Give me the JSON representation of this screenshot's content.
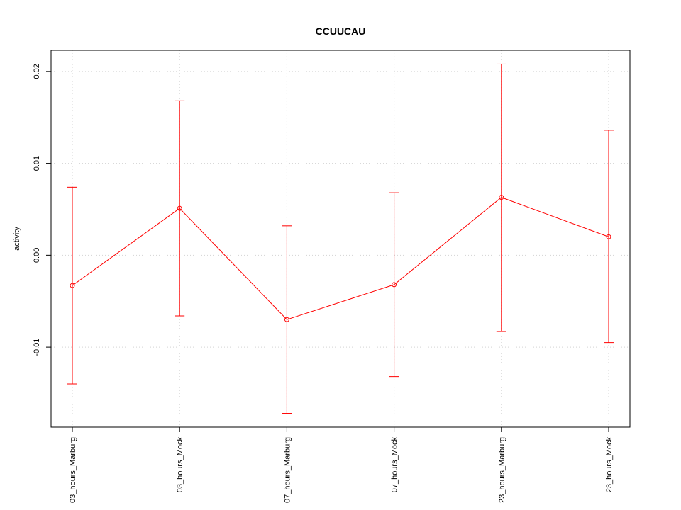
{
  "chart_data": {
    "type": "line",
    "title": "CCUUCAU",
    "xlabel": "",
    "ylabel": "activity",
    "categories": [
      "03_hours_Marburg",
      "03_hours_Mock",
      "07_hours_Marburg",
      "07_hours_Mock",
      "23_hours_Marburg",
      "23_hours_Mock"
    ],
    "series": [
      {
        "values": [
          -0.0033,
          0.0051,
          -0.007,
          -0.0032,
          0.0063,
          0.002
        ],
        "upper": [
          0.0074,
          0.0168,
          0.0032,
          0.0068,
          0.0208,
          0.0136
        ],
        "lower": [
          -0.014,
          -0.0066,
          -0.0172,
          -0.0132,
          -0.0083,
          -0.0095
        ]
      }
    ],
    "ylim": [
      -0.0187,
      0.0223
    ],
    "yticks": [
      -0.01,
      0.0,
      0.01,
      0.02
    ],
    "ytick_labels": [
      "-0.01",
      "0.00",
      "0.01",
      "0.02"
    ],
    "grid": true,
    "colors": {
      "series": "#ff0000",
      "grid": "#d3d3d3",
      "axis": "#000000"
    }
  }
}
